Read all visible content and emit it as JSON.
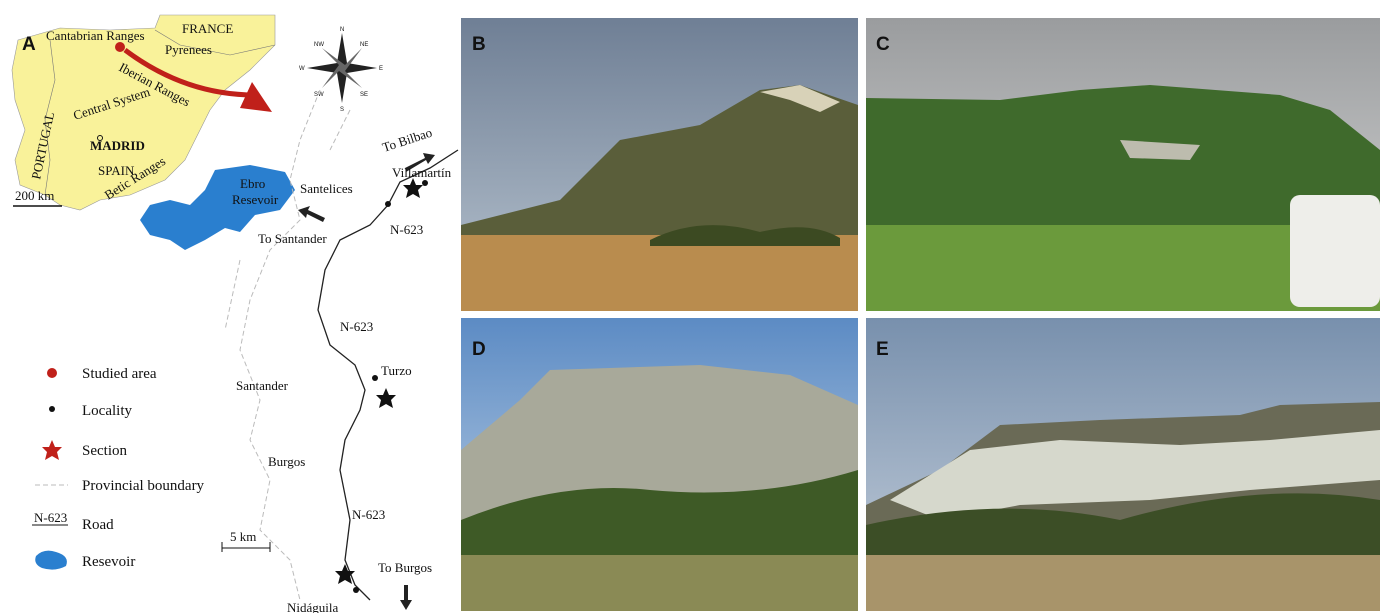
{
  "map": {
    "panel_label": "A",
    "inset": {
      "cantabrian": "Cantabrian Ranges",
      "france": "FRANCE",
      "pyrenees": "Pyrenees",
      "iberian": "Iberian Ranges",
      "portugal": "PORTUGAL",
      "central": "Central System",
      "madrid": "MADRID",
      "spain": "SPAIN",
      "betic": "Betic Ranges",
      "scale": "200 km"
    },
    "compass": {
      "n": "N",
      "ne": "NE",
      "e": "E",
      "se": "SE",
      "s": "S",
      "sw": "SW",
      "w": "W",
      "nw": "NW"
    },
    "reservoir": [
      "Ebro",
      "Resevoir"
    ],
    "places": {
      "santelices": "Santelices",
      "to_bilbao": "To Bilbao",
      "villamartin": "Villamartín",
      "to_santander": "To Santander",
      "turzo": "Turzo",
      "santander": "Santander",
      "burgos": "Burgos",
      "to_burgos": "To Burgos",
      "nidaguila": "Nidáguila"
    },
    "roads": [
      "N-623",
      "N-623",
      "N-623"
    ],
    "scale": "5 km",
    "legend": {
      "studied_area": "Studied area",
      "locality": "Locality",
      "section": "Section",
      "boundary": "Provincial boundary",
      "road_symbol": "N-623",
      "road": "Road",
      "reservoir": "Resevoir"
    }
  },
  "photos": [
    {
      "label": "B"
    },
    {
      "label": "C"
    },
    {
      "label": "D"
    },
    {
      "label": "E"
    }
  ]
}
